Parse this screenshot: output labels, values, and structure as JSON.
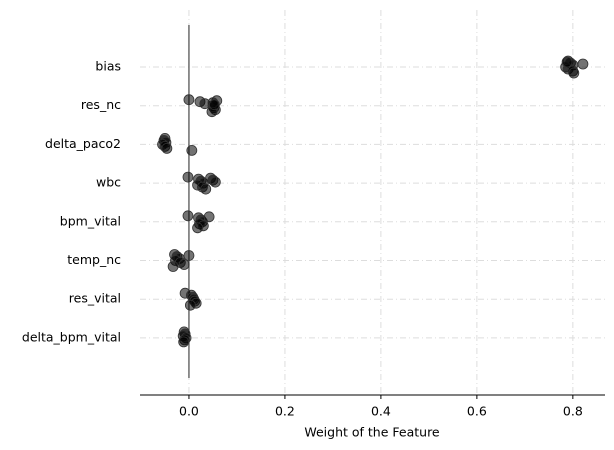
{
  "chart_data": {
    "type": "strip",
    "xlabel": "Weight of the Feature",
    "categories": [
      "bias",
      "res_nc",
      "delta_paco2",
      "wbc",
      "bpm_vital",
      "temp_nc",
      "res_vital",
      "delta_bpm_vital"
    ],
    "values": [
      [
        0.79,
        0.795,
        0.8,
        0.785,
        0.79,
        0.8,
        0.802,
        0.788,
        0.821
      ],
      [
        0.0,
        0.023,
        0.033,
        0.05,
        0.052,
        0.055,
        0.048,
        0.058,
        0.05,
        0.053
      ],
      [
        -0.05,
        -0.052,
        -0.048,
        -0.055,
        -0.05,
        -0.046,
        0.006
      ],
      [
        -0.002,
        0.02,
        0.025,
        0.03,
        0.018,
        0.028,
        0.035,
        0.045,
        0.05,
        0.055
      ],
      [
        -0.002,
        0.02,
        0.025,
        0.028,
        0.022,
        0.03,
        0.018,
        0.042
      ],
      [
        -0.03,
        -0.025,
        -0.02,
        -0.028,
        -0.018,
        -0.01,
        -0.033,
        0.0
      ],
      [
        -0.008,
        0.005,
        0.008,
        0.01,
        0.012,
        0.015,
        0.003
      ],
      [
        -0.01,
        -0.008,
        -0.012,
        -0.006,
        -0.009,
        -0.011
      ]
    ],
    "color": "#000000",
    "xlim": [
      -0.102,
      0.867
    ],
    "xticks": [
      {
        "value": 0,
        "label": "0.0"
      },
      0.2,
      0.4,
      0.6,
      0.8
    ],
    "grid": true
  }
}
